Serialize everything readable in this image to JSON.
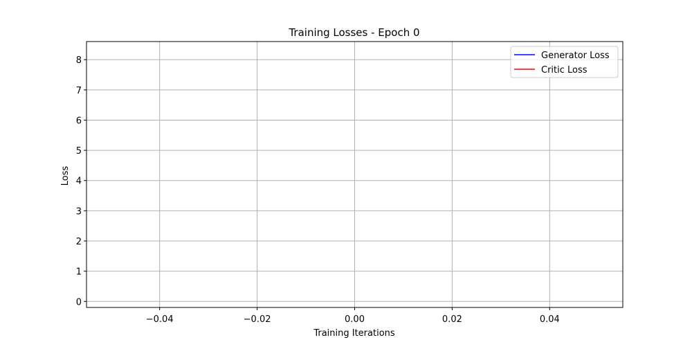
{
  "chart_data": {
    "type": "line",
    "title": "Training Losses - Epoch 0",
    "xlabel": "Training Iterations",
    "ylabel": "Loss",
    "xlim": [
      -0.055,
      0.055
    ],
    "ylim": [
      -0.2,
      8.6
    ],
    "xticks": [
      -0.04,
      -0.02,
      0.0,
      0.02,
      0.04
    ],
    "xtick_labels": [
      "−0.04",
      "−0.02",
      "0.00",
      "0.02",
      "0.04"
    ],
    "yticks": [
      0,
      1,
      2,
      3,
      4,
      5,
      6,
      7,
      8
    ],
    "ytick_labels": [
      "0",
      "1",
      "2",
      "3",
      "4",
      "5",
      "6",
      "7",
      "8"
    ],
    "grid": true,
    "legend_position": "top-right",
    "series": [
      {
        "name": "Generator Loss",
        "color": "#0000ff",
        "x": [],
        "y": []
      },
      {
        "name": "Critic Loss",
        "color": "#ff0000",
        "x": [],
        "y": []
      }
    ]
  }
}
